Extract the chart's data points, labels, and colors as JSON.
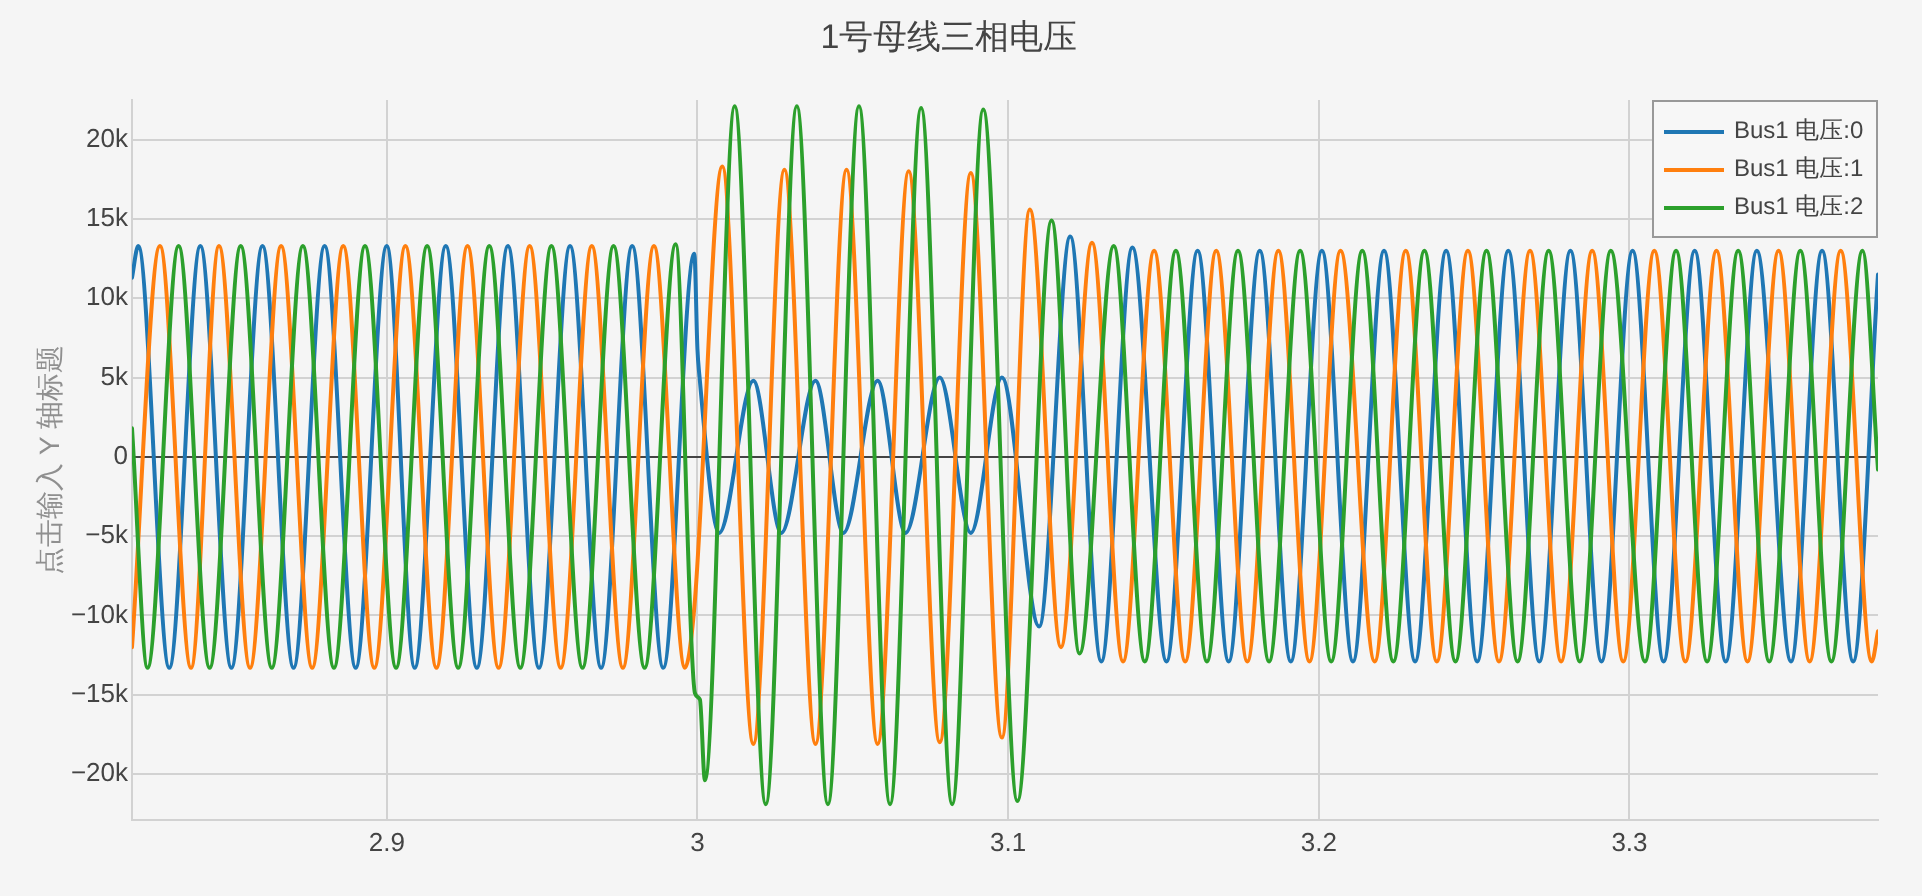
{
  "chart_data": {
    "type": "line",
    "title": "1号母线三相电压",
    "ylabel": "点击输入 Y 轴标题",
    "series": [
      {
        "name": "Bus1 电压:0",
        "color": "#1f77b4",
        "x": [
          2.818,
          2.82,
          2.83,
          2.84,
          2.85,
          2.86,
          2.87,
          2.88,
          2.89,
          2.9,
          2.909,
          2.919,
          2.929,
          2.939,
          2.949,
          2.959,
          2.969,
          2.979,
          2.989,
          2.999,
          3.0,
          3.0006,
          3.007,
          3.018,
          3.027,
          3.038,
          3.047,
          3.058,
          3.067,
          3.078,
          3.088,
          3.098,
          3.11,
          3.12,
          3.13,
          3.14,
          3.151,
          3.161,
          3.171,
          3.181,
          3.191,
          3.201,
          3.211,
          3.221,
          3.231,
          3.241,
          3.251,
          3.261,
          3.271,
          3.281,
          3.291,
          3.301,
          3.311,
          3.321,
          3.331,
          3.341,
          3.352,
          3.362,
          3.372,
          3.38
        ],
        "values": [
          11300,
          13300,
          -13300,
          13300,
          -13300,
          13300,
          -13300,
          13300,
          -13300,
          13300,
          -13300,
          13300,
          -13300,
          13300,
          -13300,
          13300,
          -13300,
          13300,
          -13300,
          12800,
          6800,
          5200,
          -4800,
          4800,
          -4800,
          4800,
          -4800,
          4800,
          -4800,
          5000,
          -4800,
          5000,
          -10700,
          13900,
          -12900,
          13200,
          -12900,
          13000,
          -12900,
          13000,
          -12900,
          13000,
          -12900,
          13000,
          -12900,
          13000,
          -12900,
          13000,
          -12900,
          13000,
          -12900,
          13000,
          -12900,
          13000,
          -12900,
          13000,
          -12900,
          13000,
          -12900,
          11500
        ]
      },
      {
        "name": "Bus1 电压:1",
        "color": "#ff7f0e",
        "x": [
          2.818,
          2.827,
          2.837,
          2.846,
          2.856,
          2.866,
          2.876,
          2.886,
          2.896,
          2.906,
          2.916,
          2.926,
          2.936,
          2.946,
          2.956,
          2.966,
          2.976,
          2.986,
          2.996,
          2.999,
          3.008,
          3.018,
          3.028,
          3.038,
          3.048,
          3.058,
          3.068,
          3.078,
          3.088,
          3.098,
          3.107,
          3.117,
          3.127,
          3.137,
          3.147,
          3.157,
          3.167,
          3.177,
          3.187,
          3.197,
          3.207,
          3.218,
          3.228,
          3.238,
          3.248,
          3.258,
          3.268,
          3.278,
          3.288,
          3.298,
          3.308,
          3.318,
          3.328,
          3.338,
          3.348,
          3.358,
          3.368,
          3.378,
          3.38
        ],
        "values": [
          -12000,
          13300,
          -13300,
          13300,
          -13300,
          13300,
          -13300,
          13300,
          -13300,
          13300,
          -13300,
          13300,
          -13300,
          13300,
          -13300,
          13300,
          -13300,
          13300,
          -13300,
          -9500,
          18300,
          -18100,
          18100,
          -18100,
          18100,
          -18100,
          18000,
          -18000,
          17900,
          -17700,
          15600,
          -12000,
          13500,
          -12900,
          13000,
          -12900,
          13000,
          -12900,
          13000,
          -12900,
          13000,
          -12900,
          13000,
          -12900,
          13000,
          -12900,
          13000,
          -12900,
          13000,
          -12900,
          13000,
          -12900,
          13000,
          -12900,
          13000,
          -12900,
          13000,
          -12900,
          -11000
        ]
      },
      {
        "name": "Bus1 电压:2",
        "color": "#2ca02c",
        "x": [
          2.818,
          2.823,
          2.833,
          2.843,
          2.853,
          2.863,
          2.873,
          2.883,
          2.893,
          2.903,
          2.913,
          2.923,
          2.933,
          2.943,
          2.953,
          2.963,
          2.973,
          2.983,
          2.993,
          2.9992,
          3.0008,
          3.0024,
          3.012,
          3.022,
          3.032,
          3.042,
          3.052,
          3.062,
          3.072,
          3.082,
          3.092,
          3.103,
          3.114,
          3.123,
          3.134,
          3.144,
          3.154,
          3.164,
          3.174,
          3.184,
          3.194,
          3.204,
          3.214,
          3.224,
          3.234,
          3.244,
          3.254,
          3.264,
          3.274,
          3.284,
          3.294,
          3.305,
          3.315,
          3.325,
          3.335,
          3.345,
          3.355,
          3.365,
          3.375,
          3.38
        ],
        "values": [
          1800,
          -13300,
          13300,
          -13300,
          13300,
          -13300,
          13300,
          -13300,
          13300,
          -13300,
          13300,
          -13300,
          13300,
          -13300,
          13300,
          -13300,
          13300,
          -13300,
          13400,
          -14900,
          -15300,
          -20400,
          22100,
          -21900,
          22100,
          -21900,
          22100,
          -21900,
          22000,
          -21900,
          21900,
          -21700,
          14900,
          -12400,
          13300,
          -12900,
          13000,
          -12900,
          13000,
          -12900,
          13000,
          -12900,
          13000,
          -12900,
          13000,
          -12900,
          13000,
          -12900,
          13000,
          -12900,
          13000,
          -12900,
          13000,
          -12900,
          13000,
          -12900,
          13000,
          -12900,
          13000,
          -800
        ]
      }
    ],
    "xlim": [
      2.818,
      3.38
    ],
    "xticks": [
      2.9,
      3,
      3.1,
      3.2,
      3.3
    ],
    "ylim": [
      -22900,
      22500
    ],
    "yticks": [
      {
        "value": -20000,
        "label": "−20k"
      },
      {
        "value": -15000,
        "label": "−15k"
      },
      {
        "value": -10000,
        "label": "−10k"
      },
      {
        "value": -5000,
        "label": "−5k"
      },
      0,
      {
        "value": 5000,
        "label": "5k"
      },
      {
        "value": 10000,
        "label": "10k"
      },
      {
        "value": 15000,
        "label": "15k"
      },
      {
        "value": 20000,
        "label": "20k"
      }
    ],
    "grid": true,
    "legend": "top right",
    "marker": "none",
    "line_style": "solid"
  }
}
